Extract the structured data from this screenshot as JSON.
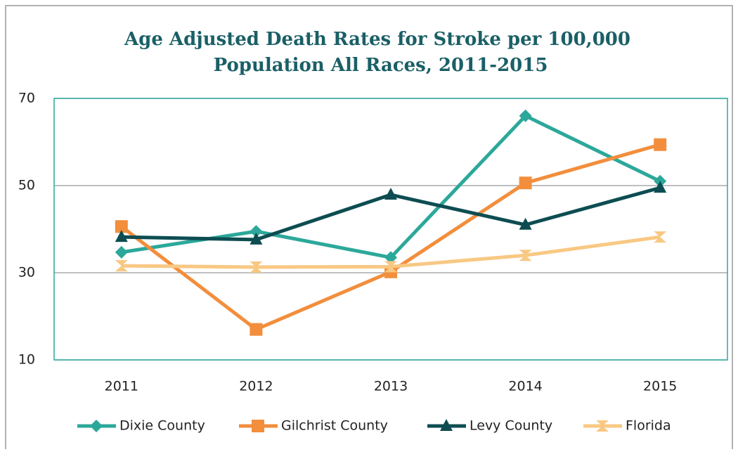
{
  "chart_data": {
    "type": "line",
    "title": "Age Adjusted Death Rates for Stroke per 100,000 Population All Races, 2011-2015",
    "categories": [
      "2011",
      "2012",
      "2013",
      "2014",
      "2015"
    ],
    "series": [
      {
        "name": "Dixie County",
        "color": "#2ca89a",
        "marker": "diamond",
        "values": [
          34.7,
          39.5,
          33.5,
          66,
          51
        ]
      },
      {
        "name": "Gilchrist County",
        "color": "#f28e3c",
        "marker": "square",
        "values": [
          40.6,
          17,
          30.2,
          50.6,
          59.4
        ]
      },
      {
        "name": "Levy County",
        "color": "#0d4d52",
        "marker": "triangle",
        "values": [
          38.2,
          37.6,
          47.9,
          41,
          49.5
        ]
      },
      {
        "name": "Florida",
        "color": "#f8c883",
        "marker": "x",
        "values": [
          31.6,
          31.3,
          31.4,
          34,
          38.2
        ]
      }
    ],
    "ylim": [
      10,
      70
    ],
    "yticks": [
      10,
      30,
      50,
      70
    ],
    "grid": true,
    "legend": "bottom"
  }
}
